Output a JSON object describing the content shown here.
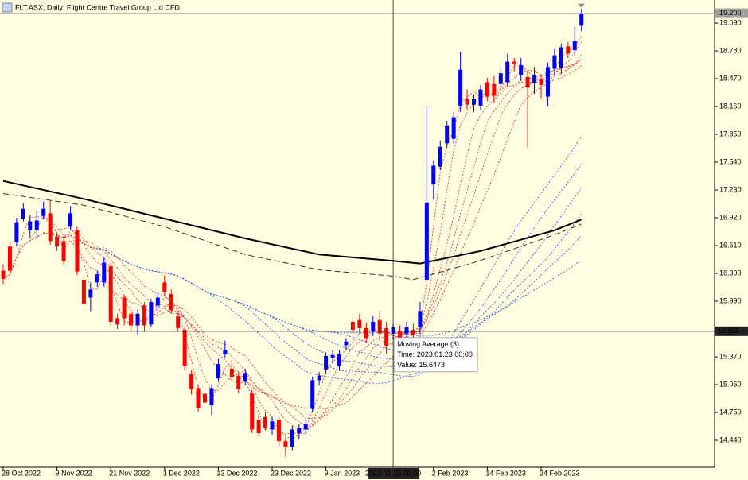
{
  "window": {
    "title": "FLT.ASX, Daily:  Flight Centre Travel Group Ltd CFD"
  },
  "chart_data": {
    "type": "candlestick",
    "categories": [
      "28 Oct 2022",
      null,
      null,
      null,
      null,
      null,
      null,
      null,
      "9 Nov 2022",
      null,
      null,
      null,
      null,
      null,
      null,
      null,
      "21 Nov 2022",
      null,
      null,
      null,
      null,
      null,
      null,
      null,
      "1 Dec 2022",
      null,
      null,
      null,
      null,
      null,
      null,
      null,
      "13 Dec 2022",
      null,
      null,
      null,
      null,
      null,
      null,
      null,
      "23 Dec 2022",
      null,
      null,
      null,
      null,
      null,
      null,
      null,
      "9 Jan 2023",
      null,
      null,
      null,
      null,
      null,
      null,
      null,
      null,
      null,
      null,
      null,
      null,
      null,
      null,
      null,
      "2 Feb 2023",
      null,
      null,
      null,
      null,
      null,
      null,
      null,
      "14 Feb 2023",
      null,
      null,
      null,
      null,
      null,
      null,
      null,
      "24 Feb 2023",
      null,
      null,
      null,
      null,
      null,
      null
    ],
    "open": [
      16.33,
      16.6,
      16.65,
      16.91,
      16.78,
      16.78,
      16.94,
      16.97,
      16.71,
      16.66,
      16.82,
      16.78,
      16.23,
      16.03,
      16.2,
      16.2,
      16.38,
      15.8,
      16.03,
      15.85,
      15.72,
      15.94,
      15.73,
      15.94,
      16.2,
      16.07,
      15.82,
      15.67,
      15.18,
      15.02,
      14.96,
      14.83,
      15.13,
      15.4,
      15.24,
      15.16,
      15.1,
      14.96,
      14.67,
      14.7,
      14.56,
      14.67,
      14.43,
      14.37,
      14.52,
      14.56,
      14.79,
      15.11,
      15.23,
      15.36,
      15.27,
      15.5,
      15.76,
      15.78,
      15.69,
      15.65,
      15.78,
      15.69,
      15.63,
      15.65,
      15.63,
      15.67,
      15.7,
      16.23,
      17.29,
      17.49,
      17.75,
      17.8,
      18.16,
      18.24,
      18.18,
      18.17,
      18.43,
      18.41,
      18.41,
      18.43,
      18.66,
      18.51,
      18.49,
      18.42,
      18.46,
      18.27,
      18.58,
      18.59,
      18.83,
      18.79,
      19.06
    ],
    "high": [
      16.4,
      16.65,
      16.92,
      17.08,
      16.95,
      17.0,
      17.1,
      17.12,
      16.75,
      16.72,
      17.05,
      16.82,
      16.3,
      16.2,
      16.33,
      16.48,
      16.42,
      15.85,
      16.06,
      15.9,
      15.9,
      15.98,
      16.02,
      16.08,
      16.28,
      16.12,
      15.86,
      15.7,
      15.22,
      15.06,
      15.0,
      15.06,
      15.35,
      15.55,
      15.34,
      15.2,
      15.24,
      15.0,
      14.72,
      14.75,
      14.7,
      14.7,
      14.47,
      14.6,
      14.62,
      14.68,
      15.15,
      15.2,
      15.42,
      15.45,
      15.45,
      15.58,
      15.82,
      15.85,
      15.75,
      15.82,
      15.88,
      15.76,
      15.74,
      15.72,
      15.76,
      15.74,
      15.98,
      18.16,
      17.56,
      17.78,
      18.0,
      18.1,
      18.77,
      18.35,
      18.3,
      18.4,
      18.48,
      18.5,
      18.6,
      18.75,
      18.7,
      18.7,
      18.55,
      18.6,
      18.52,
      18.65,
      18.8,
      18.86,
      18.88,
      19.05,
      19.25
    ],
    "low": [
      16.18,
      16.28,
      16.6,
      16.88,
      16.7,
      16.72,
      16.9,
      16.62,
      16.55,
      16.4,
      16.78,
      16.28,
      15.93,
      15.88,
      16.15,
      16.15,
      15.72,
      15.68,
      15.72,
      15.65,
      15.62,
      15.65,
      15.7,
      15.88,
      16.05,
      15.85,
      15.65,
      15.22,
      14.95,
      14.76,
      14.82,
      14.72,
      15.09,
      15.36,
      15.1,
      14.96,
      15.05,
      14.52,
      14.48,
      14.55,
      14.5,
      14.38,
      14.26,
      14.33,
      14.45,
      14.52,
      14.75,
      15.05,
      15.18,
      15.3,
      15.22,
      15.45,
      15.62,
      15.62,
      15.52,
      15.6,
      15.55,
      15.4,
      15.57,
      15.5,
      15.58,
      15.56,
      15.62,
      16.2,
      17.12,
      17.45,
      17.7,
      17.75,
      18.1,
      18.12,
      18.1,
      18.12,
      18.22,
      18.2,
      18.36,
      18.38,
      18.55,
      18.45,
      17.7,
      18.3,
      18.25,
      18.16,
      18.5,
      18.52,
      18.7,
      18.72,
      19.0
    ],
    "close": [
      16.24,
      16.33,
      16.87,
      17.02,
      16.88,
      16.89,
      17.02,
      16.66,
      16.6,
      16.44,
      16.97,
      16.32,
      15.96,
      16.12,
      16.29,
      16.42,
      15.76,
      15.73,
      15.8,
      15.72,
      15.85,
      15.72,
      15.98,
      16.03,
      16.09,
      15.89,
      15.69,
      15.27,
      15.01,
      14.8,
      14.86,
      15.02,
      15.29,
      15.45,
      15.14,
      15.01,
      15.19,
      14.56,
      14.52,
      14.58,
      14.65,
      14.43,
      14.37,
      14.56,
      14.58,
      14.62,
      15.11,
      15.16,
      15.38,
      15.39,
      15.4,
      15.54,
      15.67,
      15.69,
      15.58,
      15.76,
      15.63,
      15.49,
      15.7,
      15.58,
      15.7,
      15.61,
      15.88,
      17.09,
      17.5,
      17.71,
      17.95,
      18.04,
      18.57,
      18.18,
      18.24,
      18.35,
      18.27,
      18.28,
      18.53,
      18.66,
      18.64,
      18.62,
      18.37,
      18.51,
      18.4,
      18.6,
      18.73,
      18.82,
      18.75,
      18.89,
      19.2
    ],
    "up_color": "#0000ff",
    "down_color": "#ff0000",
    "ylim": [
      14.139,
      19.347
    ],
    "yticks": [
      {
        "value": 19.09,
        "label": "19.090"
      },
      {
        "value": 18.78,
        "label": "18.780"
      },
      {
        "value": 18.47,
        "label": "18.470"
      },
      {
        "value": 18.16,
        "label": "18.160"
      },
      {
        "value": 17.85,
        "label": "17.850"
      },
      {
        "value": 17.54,
        "label": "17.540"
      },
      {
        "value": 17.23,
        "label": "17.230"
      },
      {
        "value": 16.92,
        "label": "16.920"
      },
      {
        "value": 16.61,
        "label": "16.610"
      },
      {
        "value": 16.3,
        "label": "16.300"
      },
      {
        "value": 15.99,
        "label": "15.990"
      },
      {
        "value": 15.37,
        "label": "15.370"
      },
      {
        "value": 15.06,
        "label": "15.060"
      },
      {
        "value": 14.75,
        "label": "14.750"
      },
      {
        "value": 14.44,
        "label": "14.440"
      }
    ],
    "last_price": {
      "value": 19.2,
      "label": "19.200"
    },
    "crosshair": {
      "x_index": 58,
      "x_label": "2023.01.23 00:00",
      "y": {
        "value": 15.655,
        "label": "15.655"
      }
    },
    "tooltip": {
      "title": "Moving Average (3)",
      "time": "Time: 2023.01.23 00:00",
      "value": "Value: 15.6473"
    },
    "indicators": {
      "short_periods": [
        3,
        5,
        8,
        10,
        12,
        15
      ],
      "short_color": "#e03a3a",
      "long_periods": [
        30,
        35,
        40,
        45,
        50,
        60
      ],
      "long_color": "#3a5ae0"
    },
    "overlays": [
      {
        "style": "solid",
        "color": "#000000",
        "x": [
          0,
          12,
          24,
          36,
          47,
          58,
          62,
          71,
          82,
          86
        ],
        "values": [
          17.33,
          17.13,
          16.91,
          16.69,
          16.51,
          16.44,
          16.41,
          16.55,
          16.78,
          16.9
        ]
      },
      {
        "style": "dashed",
        "color": "#333333",
        "x": [
          0,
          12,
          24,
          36,
          47,
          58,
          61,
          70,
          82,
          86
        ],
        "values": [
          17.19,
          17.06,
          16.82,
          16.51,
          16.34,
          16.27,
          16.23,
          16.42,
          16.73,
          16.85
        ]
      }
    ]
  }
}
